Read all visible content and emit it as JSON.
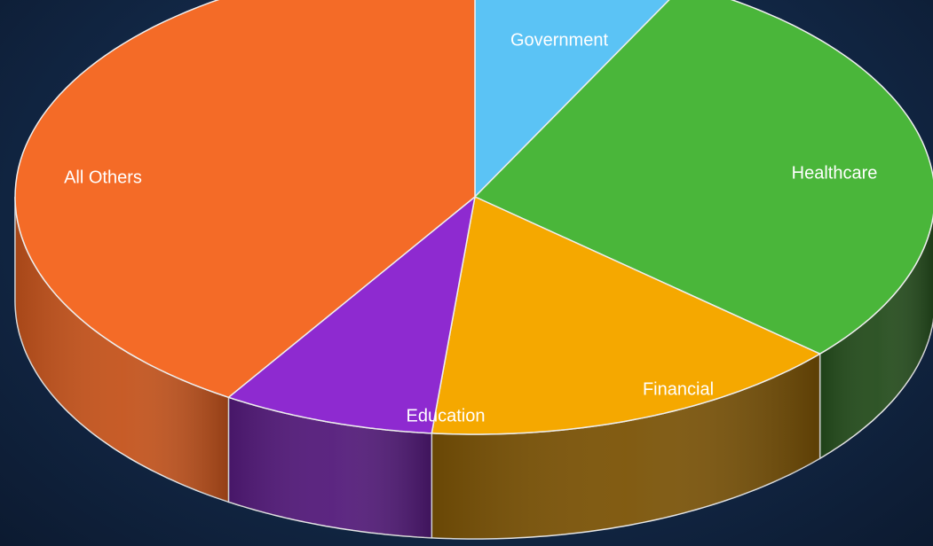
{
  "chart_data": {
    "type": "pie",
    "style": "3d-exploded-tilt",
    "categories": [
      "Government",
      "Healthcare",
      "Financial",
      "Education",
      "All Others"
    ],
    "values": [
      7.5,
      29,
      15,
      7.5,
      41
    ],
    "unit": "percent (estimated, no values printed)",
    "colors": {
      "Government": "#5bc3f5",
      "Healthcare": "#4ab63a",
      "Financial": "#f5a800",
      "Education": "#8e2ad0",
      "All Others": "#f46b27"
    },
    "side_colors": {
      "Government": "#2f7aa0",
      "Healthcare": "#244c1c",
      "Financial": "#7b5306",
      "Education": "#531a7a",
      "All Others": "#c4531c"
    },
    "start_angle_deg": 0,
    "direction": "clockwise",
    "legend": "none",
    "labels_on_slices": true
  }
}
